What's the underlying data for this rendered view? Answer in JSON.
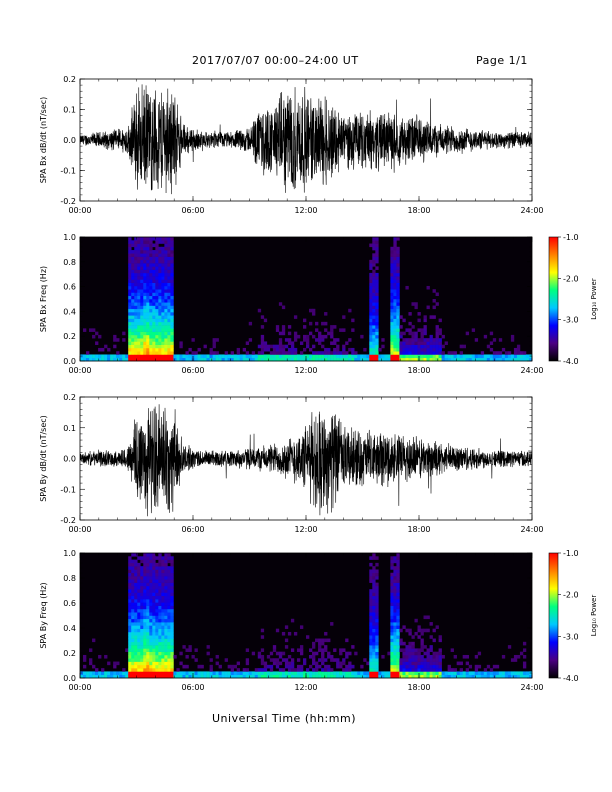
{
  "header": {
    "date_range": "2017/07/07  00:00–24:00 UT",
    "page": "Page 1/1"
  },
  "x_axis_title": "Universal Time (hh:mm)",
  "colorbar": {
    "label": "Log₁₀ Power",
    "ticks": [
      "-1.0",
      "-2.0",
      "-3.0",
      "-4.0"
    ],
    "range": [
      -4.0,
      -1.0
    ],
    "colors": [
      "#000000",
      "#4b0082",
      "#0000ff",
      "#00c8ff",
      "#00ff80",
      "#ffff00",
      "#ff8000",
      "#ff0000"
    ]
  },
  "chart_data": [
    {
      "type": "line",
      "ylabel": "SPA Bx dB/dt (nT/sec)",
      "xticks": [
        "00:00",
        "06:00",
        "12:00",
        "18:00",
        "24:00"
      ],
      "xlim": [
        0,
        24
      ],
      "ylim": [
        -0.2,
        0.2
      ],
      "yticks": [
        "0.2",
        "0.1",
        "0.0",
        "-0.1",
        "-0.2"
      ],
      "grid": false,
      "envelope": {
        "hours": [
          0,
          1,
          2,
          2.6,
          3.0,
          4.0,
          4.9,
          5.5,
          6.5,
          8.0,
          9.0,
          9.6,
          10.3,
          11.0,
          11.7,
          12.5,
          13.0,
          14.0,
          15.0,
          16.0,
          17.0,
          18.0,
          19.0,
          20.0,
          21.0,
          22.0,
          23.0,
          24.0
        ],
        "amplitude": [
          0.02,
          0.03,
          0.04,
          0.06,
          0.2,
          0.2,
          0.2,
          0.06,
          0.03,
          0.03,
          0.05,
          0.12,
          0.13,
          0.2,
          0.2,
          0.15,
          0.18,
          0.1,
          0.1,
          0.11,
          0.09,
          0.09,
          0.06,
          0.05,
          0.04,
          0.03,
          0.03,
          0.03
        ]
      }
    },
    {
      "type": "heatmap",
      "ylabel": "SPA Bx Freq (Hz)",
      "xticks": [
        "00:00",
        "06:00",
        "12:00",
        "18:00",
        "24:00"
      ],
      "xlim": [
        0,
        24
      ],
      "ylim": [
        0.0,
        1.0
      ],
      "yticks": [
        "1.0",
        "0.8",
        "0.6",
        "0.4",
        "0.2",
        "0.0"
      ],
      "zlim": [
        -4.0,
        -1.0
      ],
      "zlabel": "Log₁₀ Power"
    },
    {
      "type": "line",
      "ylabel": "SPA By dB/dt (nT/sec)",
      "xticks": [
        "00:00",
        "06:00",
        "12:00",
        "18:00",
        "24:00"
      ],
      "xlim": [
        0,
        24
      ],
      "ylim": [
        -0.2,
        0.2
      ],
      "yticks": [
        "0.2",
        "0.1",
        "0.0",
        "-0.1",
        "-0.2"
      ],
      "grid": false,
      "envelope": {
        "hours": [
          0,
          1,
          2,
          2.6,
          3.0,
          4.0,
          4.9,
          5.5,
          6.5,
          8.0,
          9.0,
          10.0,
          11.0,
          12.0,
          12.5,
          13.0,
          13.5,
          14.0,
          15.0,
          16.0,
          17.0,
          18.0,
          19.0,
          20.0,
          21.0,
          22.0,
          23.0,
          24.0
        ],
        "amplitude": [
          0.02,
          0.03,
          0.03,
          0.05,
          0.2,
          0.2,
          0.2,
          0.05,
          0.03,
          0.03,
          0.04,
          0.05,
          0.07,
          0.12,
          0.2,
          0.2,
          0.18,
          0.12,
          0.1,
          0.1,
          0.09,
          0.08,
          0.06,
          0.05,
          0.04,
          0.03,
          0.03,
          0.03
        ]
      }
    },
    {
      "type": "heatmap",
      "ylabel": "SPA By Freq (Hz)",
      "xticks": [
        "00:00",
        "06:00",
        "12:00",
        "18:00",
        "24:00"
      ],
      "xlim": [
        0,
        24
      ],
      "ylim": [
        0.0,
        1.0
      ],
      "yticks": [
        "1.0",
        "0.8",
        "0.6",
        "0.4",
        "0.2",
        "0.0"
      ],
      "zlim": [
        -4.0,
        -1.0
      ],
      "zlabel": "Log₁₀ Power"
    }
  ]
}
